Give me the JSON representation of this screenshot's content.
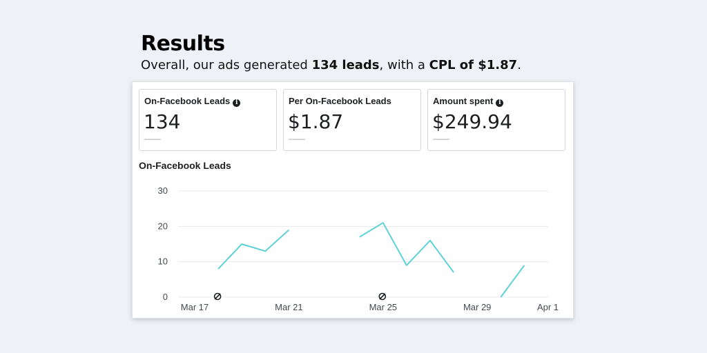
{
  "header": {
    "title": "Results",
    "intro_text": "Overall, our ads generated ",
    "leads_strong": "134 leads",
    "middle_text": ", with a ",
    "cpl_strong": "CPL of $1.87",
    "end_text": "."
  },
  "metrics": [
    {
      "label": "On-Facebook Leads",
      "has_info": true,
      "value": "134",
      "sub": "——"
    },
    {
      "label": "Per On-Facebook Leads",
      "has_info": false,
      "value": "$1.87",
      "sub": "——"
    },
    {
      "label": "Amount spent",
      "has_info": true,
      "value": "$249.94",
      "sub": "——"
    }
  ],
  "colors": {
    "line": "#5ed0d8",
    "grid": "#e6e8eb",
    "background": "#eef1f6"
  },
  "chart_data": {
    "type": "line",
    "title": "On-Facebook Leads",
    "xlabel": "",
    "ylabel": "",
    "ylim": [
      0,
      30
    ],
    "yticks": [
      0,
      10,
      20,
      30
    ],
    "xticks": [
      "Mar 17",
      "Mar 21",
      "Mar 25",
      "Mar 29",
      "Apr 1"
    ],
    "grid": true,
    "x": [
      "Mar 17",
      "Mar 18",
      "Mar 19",
      "Mar 20",
      "Mar 21",
      "Mar 22",
      "Mar 23",
      "Mar 24",
      "Mar 25",
      "Mar 26",
      "Mar 27",
      "Mar 28",
      "Mar 29",
      "Mar 30",
      "Mar 31",
      "Apr 1"
    ],
    "series": [
      {
        "values": [
          null,
          8,
          15,
          13,
          19,
          null,
          null,
          17,
          21,
          9,
          16,
          7,
          null,
          0,
          9,
          null
        ]
      }
    ],
    "annotation_markers": [
      "Mar 18",
      "Mar 25"
    ]
  }
}
